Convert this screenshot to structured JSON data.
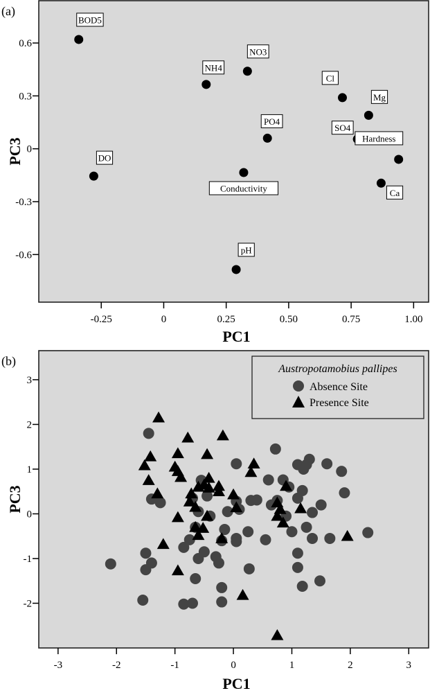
{
  "chart_data": [
    {
      "type": "scatter",
      "panel_label": "(a)",
      "title": "",
      "xlabel": "PC1",
      "ylabel": "PC3",
      "xlim": [
        -0.5,
        1.06
      ],
      "ylim": [
        -0.87,
        0.84
      ],
      "xticks": [
        -0.25,
        0,
        0.25,
        0.5,
        0.75,
        1.0
      ],
      "xtick_labels": [
        "-0.25",
        "0",
        "0.25",
        "0.50",
        "0.75",
        "1.00"
      ],
      "yticks": [
        0.6,
        0.3,
        0,
        -0.3,
        -0.6
      ],
      "ytick_labels": [
        "0.6",
        "0.3",
        "0",
        "-0.3",
        "-0.6"
      ],
      "grid": false,
      "background": "#d9d9d9",
      "points": [
        {
          "label": "BOD5",
          "x": -0.34,
          "y": 0.62,
          "label_pos": "above"
        },
        {
          "label": "DO",
          "x": -0.28,
          "y": -0.155,
          "label_pos": "above-right"
        },
        {
          "label": "NH4",
          "x": 0.17,
          "y": 0.365,
          "label_pos": "above"
        },
        {
          "label": "NO3",
          "x": 0.335,
          "y": 0.44,
          "label_pos": "above"
        },
        {
          "label": "PO4",
          "x": 0.415,
          "y": 0.06,
          "label_pos": "above"
        },
        {
          "label": "Conductivity",
          "x": 0.32,
          "y": -0.135,
          "label_pos": "below"
        },
        {
          "label": "pH",
          "x": 0.29,
          "y": -0.685,
          "label_pos": "above"
        },
        {
          "label": "Cl",
          "x": 0.715,
          "y": 0.29,
          "label_pos": "above-left"
        },
        {
          "label": "Mg",
          "x": 0.82,
          "y": 0.19,
          "label_pos": "above-right"
        },
        {
          "label": "SO4",
          "x": 0.775,
          "y": 0.055,
          "label_pos": "left"
        },
        {
          "label": "Hardness",
          "x": 0.94,
          "y": -0.06,
          "label_pos": "above"
        },
        {
          "label": "Ca",
          "x": 0.87,
          "y": -0.195,
          "label_pos": "below-right"
        }
      ]
    },
    {
      "type": "scatter",
      "panel_label": "(b)",
      "title": "",
      "xlabel": "PC1",
      "ylabel": "PC3",
      "xlim": [
        -3.33,
        3.34
      ],
      "ylim": [
        -3.0,
        3.65
      ],
      "xticks": [
        -3,
        -2,
        -1,
        0,
        1,
        2,
        3
      ],
      "xtick_labels": [
        "-3",
        "-2",
        "-1",
        "0",
        "1",
        "2",
        "3"
      ],
      "yticks": [
        3,
        2,
        1,
        0,
        -1,
        -2
      ],
      "ytick_labels": [
        "3",
        "2",
        "1",
        "0",
        "-1",
        "-2"
      ],
      "grid": false,
      "background": "#d9d9d9",
      "legend": {
        "title": "Austropotamobius pallipes",
        "placement": "top-right",
        "entries": [
          {
            "label": "Absence Site",
            "marker": "circle",
            "color": "#444444"
          },
          {
            "label": "Presence Site",
            "marker": "triangle",
            "color": "#000000"
          }
        ]
      },
      "series": [
        {
          "name": "Absence Site",
          "marker": "circle",
          "color": "#444444",
          "points": [
            [
              -1.45,
              1.8
            ],
            [
              -1.4,
              0.33
            ],
            [
              -1.25,
              0.25
            ],
            [
              -0.7,
              0.35
            ],
            [
              -0.55,
              0.75
            ],
            [
              -0.1,
              0.05
            ],
            [
              0.05,
              1.12
            ],
            [
              0.05,
              0.28
            ],
            [
              0.3,
              0.3
            ],
            [
              0.4,
              0.31
            ],
            [
              0.6,
              0.76
            ],
            [
              0.72,
              1.45
            ],
            [
              0.85,
              0.76
            ],
            [
              0.95,
              0.6
            ],
            [
              1.1,
              1.1
            ],
            [
              1.2,
              1.0
            ],
            [
              1.3,
              1.22
            ],
            [
              1.25,
              1.1
            ],
            [
              1.6,
              1.12
            ],
            [
              1.85,
              0.95
            ],
            [
              1.9,
              0.47
            ],
            [
              1.1,
              0.35
            ],
            [
              1.18,
              0.52
            ],
            [
              1.5,
              0.2
            ],
            [
              1.35,
              0.03
            ],
            [
              0.65,
              0.2
            ],
            [
              0.9,
              -0.05
            ],
            [
              1.0,
              -0.4
            ],
            [
              1.25,
              -0.3
            ],
            [
              1.35,
              -0.55
            ],
            [
              1.65,
              -0.55
            ],
            [
              2.3,
              -0.42
            ],
            [
              0.55,
              -0.58
            ],
            [
              0.25,
              -0.4
            ],
            [
              0.05,
              -0.55
            ],
            [
              0.05,
              -0.62
            ],
            [
              -0.15,
              -0.35
            ],
            [
              -0.2,
              -0.6
            ],
            [
              -0.65,
              -0.3
            ],
            [
              -0.75,
              -0.58
            ],
            [
              -1.5,
              -0.88
            ],
            [
              -1.4,
              -1.1
            ],
            [
              -1.5,
              -1.25
            ],
            [
              -2.1,
              -1.12
            ],
            [
              -0.85,
              -0.75
            ],
            [
              -0.5,
              -0.85
            ],
            [
              -0.3,
              -0.96
            ],
            [
              -0.25,
              -1.1
            ],
            [
              -0.6,
              -1.0
            ],
            [
              -0.65,
              -1.45
            ],
            [
              -0.2,
              -1.65
            ],
            [
              0.27,
              -1.23
            ],
            [
              1.1,
              -0.88
            ],
            [
              1.1,
              -1.2
            ],
            [
              1.18,
              -1.62
            ],
            [
              1.48,
              -1.5
            ],
            [
              -1.55,
              -1.93
            ],
            [
              -0.85,
              -2.02
            ],
            [
              -0.7,
              -2.0
            ],
            [
              -0.2,
              -1.97
            ],
            [
              -0.4,
              -0.05
            ],
            [
              -0.6,
              0.05
            ],
            [
              -0.45,
              0.4
            ],
            [
              0.1,
              0.1
            ],
            [
              0.75,
              0.3
            ]
          ]
        },
        {
          "name": "Presence Site",
          "marker": "triangle",
          "color": "#000000",
          "points": [
            [
              -1.28,
              2.15
            ],
            [
              -0.78,
              1.7
            ],
            [
              -0.18,
              1.75
            ],
            [
              -1.42,
              1.28
            ],
            [
              -1.52,
              1.08
            ],
            [
              -0.95,
              1.35
            ],
            [
              -1.0,
              1.05
            ],
            [
              -0.95,
              0.95
            ],
            [
              -0.45,
              1.33
            ],
            [
              -0.42,
              0.8
            ],
            [
              -1.45,
              0.75
            ],
            [
              -1.3,
              0.45
            ],
            [
              -0.72,
              0.45
            ],
            [
              -0.6,
              0.6
            ],
            [
              -0.5,
              0.65
            ],
            [
              -0.42,
              0.58
            ],
            [
              -0.25,
              0.62
            ],
            [
              -0.25,
              0.5
            ],
            [
              -0.9,
              0.82
            ],
            [
              0.0,
              0.43
            ],
            [
              0.35,
              1.12
            ],
            [
              0.3,
              0.93
            ],
            [
              0.05,
              0.14
            ],
            [
              -0.95,
              -0.08
            ],
            [
              -0.65,
              -0.3
            ],
            [
              -0.6,
              -0.48
            ],
            [
              -0.52,
              -0.32
            ],
            [
              -0.45,
              -0.05
            ],
            [
              -0.2,
              -0.55
            ],
            [
              0.75,
              0.25
            ],
            [
              0.75,
              -0.05
            ],
            [
              0.8,
              0.1
            ],
            [
              0.85,
              -0.2
            ],
            [
              0.9,
              0.62
            ],
            [
              1.15,
              0.12
            ],
            [
              1.95,
              -0.5
            ],
            [
              -1.2,
              -0.68
            ],
            [
              -0.95,
              -1.27
            ],
            [
              0.16,
              -1.82
            ],
            [
              0.75,
              -2.72
            ],
            [
              -0.75,
              0.27
            ],
            [
              -0.65,
              0.15
            ]
          ]
        }
      ]
    }
  ]
}
